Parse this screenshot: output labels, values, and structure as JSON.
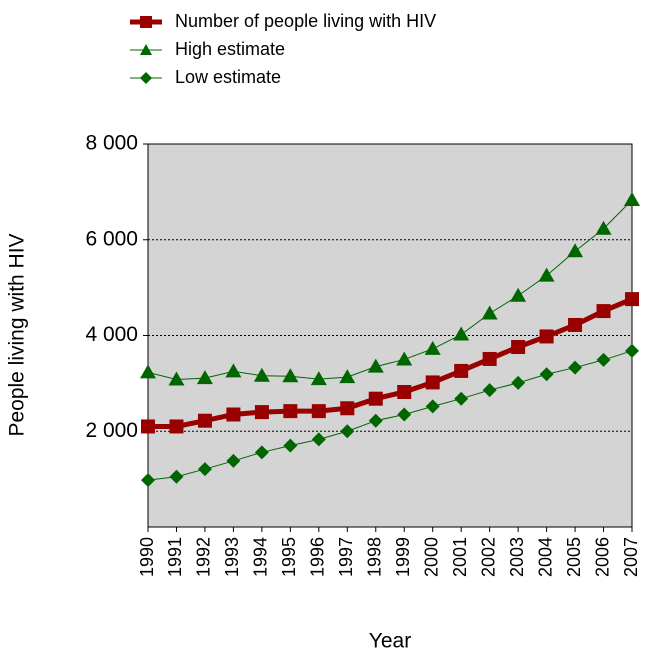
{
  "chart_data": {
    "type": "line",
    "x_label": "Year",
    "y_label": "People living with HIV",
    "x": [
      1990,
      1991,
      1992,
      1993,
      1994,
      1995,
      1996,
      1997,
      1998,
      1999,
      2000,
      2001,
      2002,
      2003,
      2004,
      2005,
      2006,
      2007
    ],
    "xlim": [
      1990,
      2007
    ],
    "xticks": [
      1990,
      1991,
      1992,
      1993,
      1994,
      1995,
      1996,
      1997,
      1998,
      1999,
      2000,
      2001,
      2002,
      2003,
      2004,
      2005,
      2006,
      2007
    ],
    "ylim": [
      0,
      8000
    ],
    "yticks": [
      {
        "value": 2000,
        "label": "2 000"
      },
      {
        "value": 4000,
        "label": "4 000"
      },
      {
        "value": 6000,
        "label": "6 000"
      },
      {
        "value": 8000,
        "label": "8 000"
      }
    ],
    "grid": true,
    "background": "#d4d4d4",
    "series": [
      {
        "name": "Number of people living with HIV",
        "color": "#990000",
        "marker": "square",
        "width": 5,
        "values": [
          2100,
          2100,
          2220,
          2350,
          2400,
          2420,
          2420,
          2480,
          2680,
          2820,
          3020,
          3260,
          3510,
          3760,
          3980,
          4220,
          4510,
          4760
        ]
      },
      {
        "name": "High estimate",
        "color": "#006600",
        "marker": "triangle",
        "width": 1,
        "values": [
          3230,
          3080,
          3110,
          3250,
          3160,
          3150,
          3090,
          3130,
          3350,
          3500,
          3720,
          4020,
          4460,
          4830,
          5250,
          5760,
          6230,
          6830
        ]
      },
      {
        "name": "Low estimate",
        "color": "#006600",
        "marker": "diamond",
        "width": 1,
        "values": [
          980,
          1050,
          1210,
          1380,
          1560,
          1700,
          1830,
          2000,
          2220,
          2350,
          2520,
          2680,
          2860,
          3010,
          3190,
          3330,
          3490,
          3680
        ]
      }
    ]
  }
}
